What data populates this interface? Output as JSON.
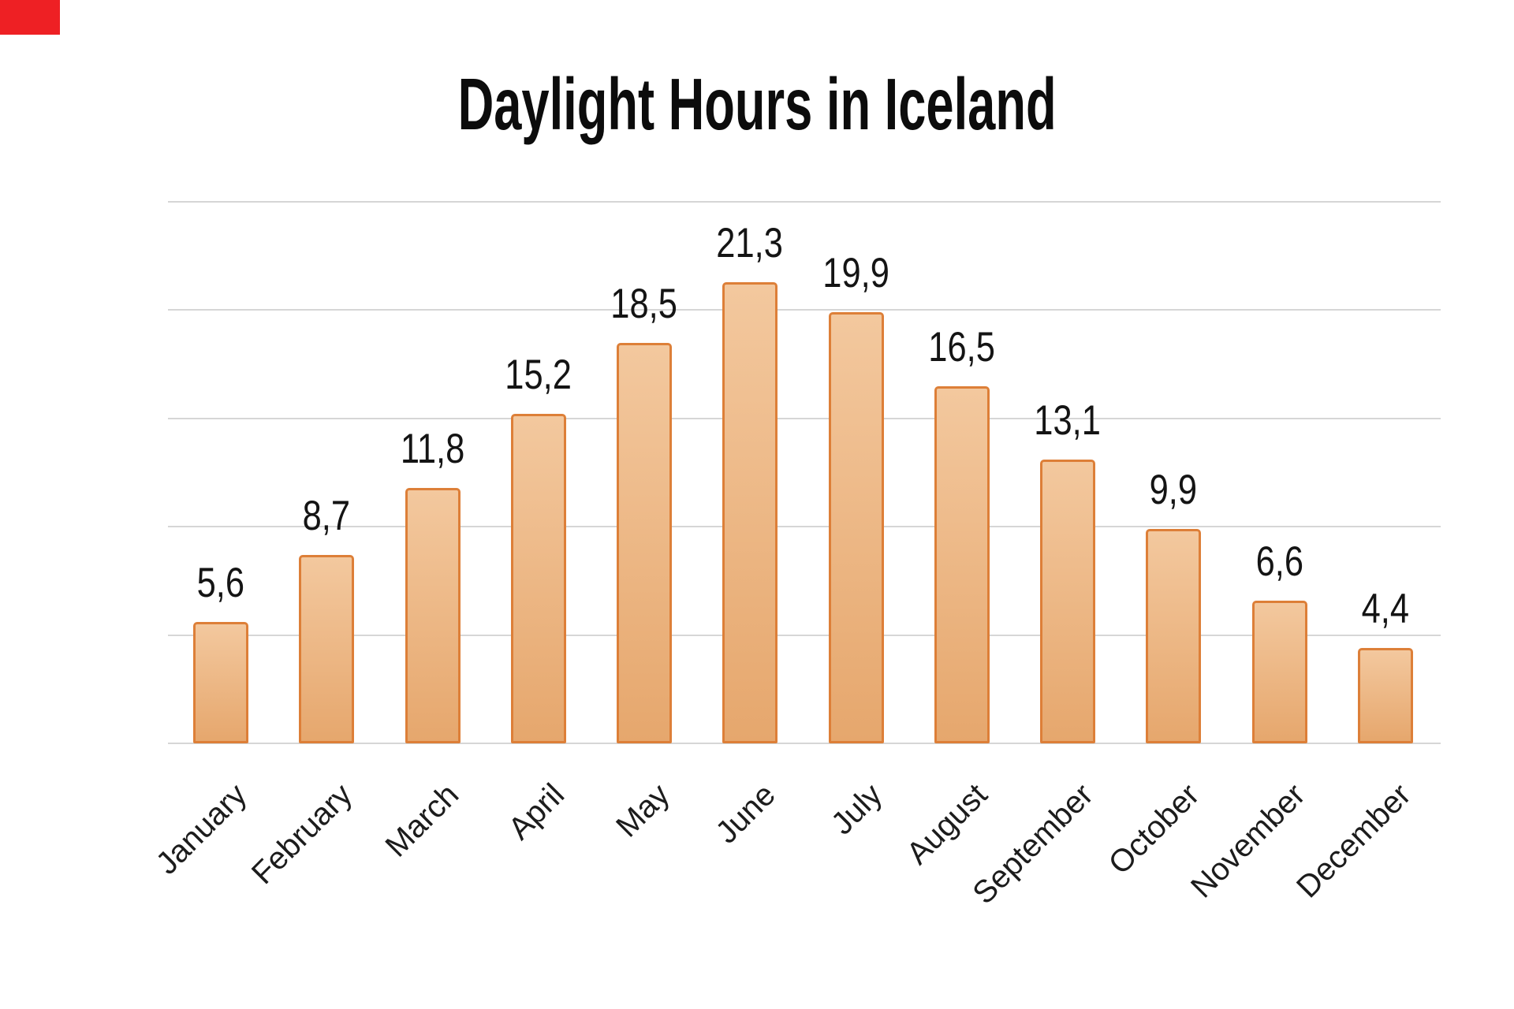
{
  "page": {
    "background": "#ffffff",
    "corner_marker_color": "#ee2024"
  },
  "chart_data": {
    "type": "bar",
    "title": "Daylight Hours in Iceland",
    "categories": [
      "January",
      "February",
      "March",
      "April",
      "May",
      "June",
      "July",
      "August",
      "September",
      "October",
      "November",
      "December"
    ],
    "values": [
      5.6,
      8.7,
      11.8,
      15.2,
      18.5,
      21.3,
      19.9,
      16.5,
      13.1,
      9.9,
      6.6,
      4.4
    ],
    "value_labels": [
      "5,6",
      "8,7",
      "11,8",
      "15,2",
      "18,5",
      "21,3",
      "19,9",
      "16,5",
      "13,1",
      "9,9",
      "6,6",
      "4,4"
    ],
    "decimal_separator": ",",
    "xlabel": "",
    "ylabel": "",
    "ylim": [
      0,
      25
    ],
    "grid_step": 5,
    "grid": true,
    "y_tick_labels_visible": false,
    "legend": "none",
    "colors": {
      "bar_fill_top": "#f3c89e",
      "bar_fill_bottom": "#e6a76d",
      "bar_border": "#dd7f38",
      "gridline": "#d6d6d6",
      "title": "#0c0c0c",
      "label_text": "#141414",
      "axis_text": "#1c1c1c"
    }
  }
}
